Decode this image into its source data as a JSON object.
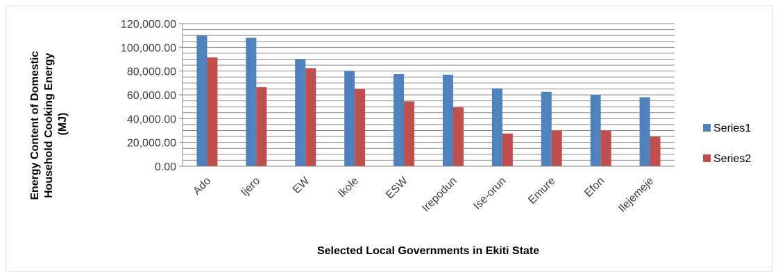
{
  "chart_data": {
    "type": "bar",
    "categories": [
      "Ado",
      "Ijero",
      "EW",
      "Ikole",
      "ESW",
      "Irepodun",
      "Ise-orun",
      "Emure",
      "Efon",
      "Ilejemeje"
    ],
    "series": [
      {
        "name": "Series1",
        "color": "#4f81bd",
        "values": [
          110000,
          108000,
          90000,
          80000,
          77500,
          77000,
          65500,
          62500,
          60000,
          58000
        ]
      },
      {
        "name": "Series2",
        "color": "#c0504d",
        "values": [
          91500,
          66500,
          82500,
          65000,
          54500,
          49500,
          27500,
          30000,
          30000,
          25000
        ]
      }
    ],
    "title": "",
    "xlabel": "Selected Local Governments in Ekiti State",
    "ylabel_lines": [
      "Energy Content  of Domestic",
      "Household Cooking Energy",
      "(MJ)"
    ],
    "ylim": [
      0,
      120000
    ],
    "y_ticks": [
      {
        "value": 0,
        "label": "0.00"
      },
      {
        "value": 20000,
        "label": "20,000.00"
      },
      {
        "value": 40000,
        "label": "40,000.00"
      },
      {
        "value": 60000,
        "label": "60,000.00"
      },
      {
        "value": 80000,
        "label": "80,000.00"
      },
      {
        "value": 100000,
        "label": "100,000.00"
      },
      {
        "value": 120000,
        "label": "120,000.00"
      }
    ],
    "minor_grid_step": 5000,
    "grid": true,
    "legend_position": "right",
    "grid_color": "#8c8c8c",
    "axis_color": "#868686"
  }
}
